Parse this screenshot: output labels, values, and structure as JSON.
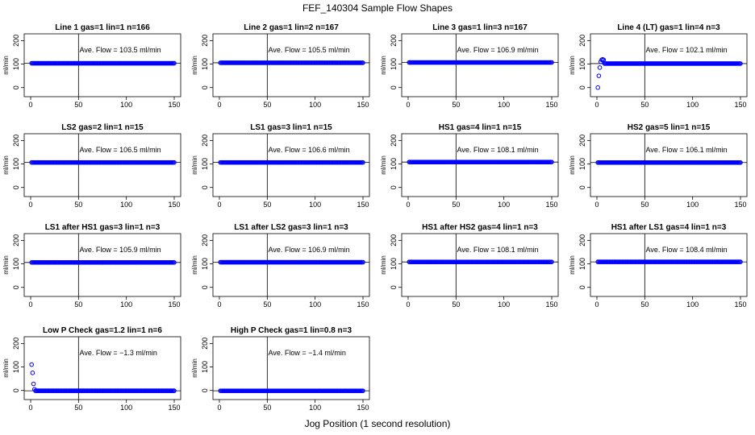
{
  "figure": {
    "title": "FEF_140304  Sample Flow Shapes",
    "xlabel": "Jog Position (1 second resolution)"
  },
  "chart_data": [
    {
      "type": "scatter",
      "title": "Line 1 gas=1 lin=1 n=166",
      "ylabel": "ml/min",
      "annotation": "Ave. Flow =  103.5  ml/min",
      "ave_flow": 103.5,
      "xlim": [
        0,
        150
      ],
      "ylim": [
        -25,
        215
      ],
      "xticks": [
        0,
        50,
        100,
        150
      ],
      "yticks": [
        0,
        100,
        200
      ],
      "vline_x": 50,
      "hline_y": 103.5,
      "initial_points": [],
      "series_range": [
        1,
        150
      ]
    },
    {
      "type": "scatter",
      "title": "Line 2 gas=1 lin=2 n=167",
      "ylabel": "ml/min",
      "annotation": "Ave. Flow =  105.5  ml/min",
      "ave_flow": 105.5,
      "xlim": [
        0,
        150
      ],
      "ylim": [
        -25,
        215
      ],
      "xticks": [
        0,
        50,
        100,
        150
      ],
      "yticks": [
        0,
        100,
        200
      ],
      "vline_x": 50,
      "hline_y": 105.5,
      "initial_points": [],
      "series_range": [
        1,
        150
      ]
    },
    {
      "type": "scatter",
      "title": "Line 3 gas=1 lin=3 n=167",
      "ylabel": "ml/min",
      "annotation": "Ave. Flow =  106.9  ml/min",
      "ave_flow": 106.9,
      "xlim": [
        0,
        150
      ],
      "ylim": [
        -25,
        215
      ],
      "xticks": [
        0,
        50,
        100,
        150
      ],
      "yticks": [
        0,
        100,
        200
      ],
      "vline_x": 50,
      "hline_y": 106.9,
      "initial_points": [],
      "series_range": [
        1,
        150
      ]
    },
    {
      "type": "scatter",
      "title": "Line 4 (LT) gas=1 lin=4 n=3",
      "ylabel": "ml/min",
      "annotation": "Ave. Flow =  102.1  ml/min",
      "ave_flow": 102.1,
      "xlim": [
        0,
        150
      ],
      "ylim": [
        -25,
        215
      ],
      "xticks": [
        0,
        50,
        100,
        150
      ],
      "yticks": [
        0,
        100,
        200
      ],
      "vline_x": 50,
      "hline_y": 102.1,
      "initial_points": [
        [
          1,
          0
        ],
        [
          2,
          50
        ],
        [
          3,
          85
        ],
        [
          4,
          110
        ],
        [
          5,
          118
        ],
        [
          6,
          120
        ],
        [
          7,
          118
        ]
      ],
      "series_range": [
        8,
        150
      ]
    },
    {
      "type": "scatter",
      "title": "LS2 gas=2 lin=1 n=15",
      "ylabel": "ml/min",
      "annotation": "Ave. Flow =  106.5  ml/min",
      "ave_flow": 106.5,
      "xlim": [
        0,
        150
      ],
      "ylim": [
        -25,
        215
      ],
      "xticks": [
        0,
        50,
        100,
        150
      ],
      "yticks": [
        0,
        100,
        200
      ],
      "vline_x": 50,
      "hline_y": 106.5,
      "initial_points": [],
      "series_range": [
        1,
        150
      ]
    },
    {
      "type": "scatter",
      "title": "LS1 gas=3 lin=1 n=15",
      "ylabel": "ml/min",
      "annotation": "Ave. Flow =  106.6  ml/min",
      "ave_flow": 106.6,
      "xlim": [
        0,
        150
      ],
      "ylim": [
        -25,
        215
      ],
      "xticks": [
        0,
        50,
        100,
        150
      ],
      "yticks": [
        0,
        100,
        200
      ],
      "vline_x": 50,
      "hline_y": 106.6,
      "initial_points": [],
      "series_range": [
        1,
        150
      ]
    },
    {
      "type": "scatter",
      "title": "HS1 gas=4 lin=1 n=15",
      "ylabel": "ml/min",
      "annotation": "Ave. Flow =  108.1  ml/min",
      "ave_flow": 108.1,
      "xlim": [
        0,
        150
      ],
      "ylim": [
        -25,
        215
      ],
      "xticks": [
        0,
        50,
        100,
        150
      ],
      "yticks": [
        0,
        100,
        200
      ],
      "vline_x": 50,
      "hline_y": 108.1,
      "initial_points": [],
      "series_range": [
        1,
        150
      ]
    },
    {
      "type": "scatter",
      "title": "HS2 gas=5 lin=1 n=15",
      "ylabel": "ml/min",
      "annotation": "Ave. Flow =  106.1  ml/min",
      "ave_flow": 106.1,
      "xlim": [
        0,
        150
      ],
      "ylim": [
        -25,
        215
      ],
      "xticks": [
        0,
        50,
        100,
        150
      ],
      "yticks": [
        0,
        100,
        200
      ],
      "vline_x": 50,
      "hline_y": 106.1,
      "initial_points": [],
      "series_range": [
        1,
        150
      ]
    },
    {
      "type": "scatter",
      "title": "LS1 after HS1 gas=3 lin=1 n=3",
      "ylabel": "ml/min",
      "annotation": "Ave. Flow =  105.9  ml/min",
      "ave_flow": 105.9,
      "xlim": [
        0,
        150
      ],
      "ylim": [
        -25,
        215
      ],
      "xticks": [
        0,
        50,
        100,
        150
      ],
      "yticks": [
        0,
        100,
        200
      ],
      "vline_x": 50,
      "hline_y": 105.9,
      "initial_points": [],
      "series_range": [
        1,
        150
      ]
    },
    {
      "type": "scatter",
      "title": "LS1 after LS2 gas=3 lin=1 n=3",
      "ylabel": "ml/min",
      "annotation": "Ave. Flow =  106.9  ml/min",
      "ave_flow": 106.9,
      "xlim": [
        0,
        150
      ],
      "ylim": [
        -25,
        215
      ],
      "xticks": [
        0,
        50,
        100,
        150
      ],
      "yticks": [
        0,
        100,
        200
      ],
      "vline_x": 50,
      "hline_y": 106.9,
      "initial_points": [],
      "series_range": [
        1,
        150
      ]
    },
    {
      "type": "scatter",
      "title": "HS1 after HS2 gas=4 lin=1 n=3",
      "ylabel": "ml/min",
      "annotation": "Ave. Flow =  108.1  ml/min",
      "ave_flow": 108.1,
      "xlim": [
        0,
        150
      ],
      "ylim": [
        -25,
        215
      ],
      "xticks": [
        0,
        50,
        100,
        150
      ],
      "yticks": [
        0,
        100,
        200
      ],
      "vline_x": 50,
      "hline_y": 108.1,
      "initial_points": [],
      "series_range": [
        1,
        150
      ]
    },
    {
      "type": "scatter",
      "title": "HS1 after LS1 gas=4 lin=1 n=3",
      "ylabel": "ml/min",
      "annotation": "Ave. Flow =  108.4  ml/min",
      "ave_flow": 108.4,
      "xlim": [
        0,
        150
      ],
      "ylim": [
        -25,
        215
      ],
      "xticks": [
        0,
        50,
        100,
        150
      ],
      "yticks": [
        0,
        100,
        200
      ],
      "vline_x": 50,
      "hline_y": 108.4,
      "initial_points": [],
      "series_range": [
        1,
        150
      ]
    },
    {
      "type": "scatter",
      "title": "Low P Check gas=1.2 lin=1 n=6",
      "ylabel": "ml/min",
      "annotation": "Ave. Flow =  −1.3  ml/min",
      "ave_flow": -1.3,
      "xlim": [
        0,
        150
      ],
      "ylim": [
        -25,
        215
      ],
      "xticks": [
        0,
        50,
        100,
        150
      ],
      "yticks": [
        0,
        100,
        200
      ],
      "vline_x": 50,
      "hline_y": -1.3,
      "initial_points": [
        [
          1,
          110
        ],
        [
          2,
          75
        ],
        [
          3,
          28
        ],
        [
          4,
          5
        ]
      ],
      "series_range": [
        5,
        150
      ]
    },
    {
      "type": "scatter",
      "title": "High P Check gas=1 lin=0.8 n=3",
      "ylabel": "ml/min",
      "annotation": "Ave. Flow =  −1.4  ml/min",
      "ave_flow": -1.4,
      "xlim": [
        0,
        150
      ],
      "ylim": [
        -25,
        215
      ],
      "xticks": [
        0,
        50,
        100,
        150
      ],
      "yticks": [
        0,
        100,
        200
      ],
      "vline_x": 50,
      "hline_y": -1.4,
      "initial_points": [],
      "series_range": [
        1,
        150
      ]
    }
  ],
  "colors": {
    "points": "#0000ff",
    "axes": "#000000"
  }
}
